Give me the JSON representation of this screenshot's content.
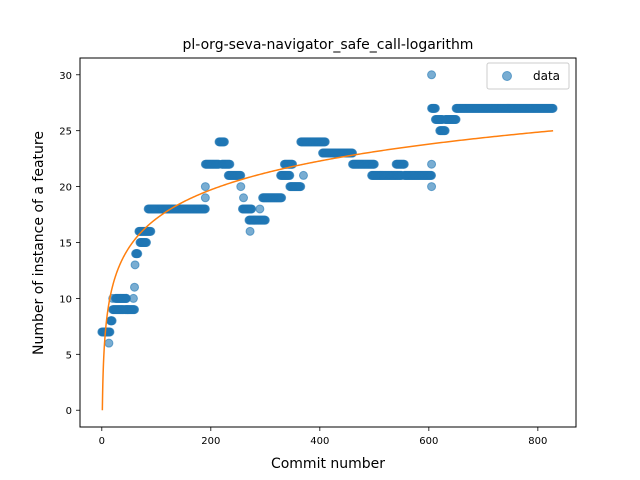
{
  "chart_data": {
    "type": "scatter",
    "title": "pl-org-seva-navigator_safe_call-logarithm",
    "xlabel": "Commit number",
    "ylabel": "Number of instance of a feature",
    "xlim": [
      -40,
      870
    ],
    "ylim": [
      -1.5,
      31.5
    ],
    "xticks": [
      0,
      200,
      400,
      600,
      800
    ],
    "yticks": [
      0,
      5,
      10,
      15,
      20,
      25,
      30
    ],
    "grid": false,
    "legend": {
      "placement": "top-right",
      "entries": [
        "data"
      ]
    },
    "colors": {
      "data": "#1f77b4",
      "fit": "#ff7f0e"
    },
    "series": [
      {
        "name": "data",
        "kind": "scatter",
        "x_ranges": [
          {
            "from": 0,
            "to": 15,
            "y": 7
          },
          {
            "from": 16,
            "to": 19,
            "y": 8
          },
          {
            "from": 20,
            "to": 40,
            "y": 9
          },
          {
            "from": 42,
            "to": 60,
            "y": 9
          },
          {
            "from": 25,
            "to": 45,
            "y": 10
          },
          {
            "from": 62,
            "to": 66,
            "y": 14
          },
          {
            "from": 70,
            "to": 82,
            "y": 15
          },
          {
            "from": 68,
            "to": 90,
            "y": 16
          },
          {
            "from": 85,
            "to": 190,
            "y": 18
          },
          {
            "from": 190,
            "to": 215,
            "y": 22
          },
          {
            "from": 215,
            "to": 225,
            "y": 24
          },
          {
            "from": 220,
            "to": 235,
            "y": 22
          },
          {
            "from": 232,
            "to": 255,
            "y": 21
          },
          {
            "from": 258,
            "to": 275,
            "y": 18
          },
          {
            "from": 270,
            "to": 300,
            "y": 17
          },
          {
            "from": 295,
            "to": 330,
            "y": 19
          },
          {
            "from": 328,
            "to": 345,
            "y": 21
          },
          {
            "from": 335,
            "to": 350,
            "y": 22
          },
          {
            "from": 345,
            "to": 365,
            "y": 20
          },
          {
            "from": 365,
            "to": 410,
            "y": 24
          },
          {
            "from": 405,
            "to": 460,
            "y": 23
          },
          {
            "from": 460,
            "to": 500,
            "y": 22
          },
          {
            "from": 495,
            "to": 550,
            "y": 21
          },
          {
            "from": 540,
            "to": 555,
            "y": 22
          },
          {
            "from": 555,
            "to": 605,
            "y": 21
          },
          {
            "from": 605,
            "to": 612,
            "y": 27
          },
          {
            "from": 612,
            "to": 625,
            "y": 26
          },
          {
            "from": 620,
            "to": 630,
            "y": 25
          },
          {
            "from": 630,
            "to": 650,
            "y": 26
          },
          {
            "from": 650,
            "to": 828,
            "y": 27
          }
        ],
        "points": [
          [
            5,
            7
          ],
          [
            10,
            7
          ],
          [
            13,
            6
          ],
          [
            17,
            8
          ],
          [
            20,
            10
          ],
          [
            35,
            10
          ],
          [
            45,
            10
          ],
          [
            58,
            10
          ],
          [
            60,
            11
          ],
          [
            61,
            13
          ],
          [
            64,
            14
          ],
          [
            95,
            18
          ],
          [
            190,
            20
          ],
          [
            190,
            19
          ],
          [
            260,
            19
          ],
          [
            255,
            20
          ],
          [
            272,
            16
          ],
          [
            290,
            18
          ],
          [
            370,
            21
          ],
          [
            605,
            30
          ],
          [
            605,
            22
          ],
          [
            605,
            20
          ],
          [
            608,
            27
          ]
        ]
      },
      {
        "name": "",
        "kind": "line",
        "model": "log",
        "a": 3.72,
        "b": 0,
        "x_range": [
          1,
          828
        ]
      }
    ]
  }
}
